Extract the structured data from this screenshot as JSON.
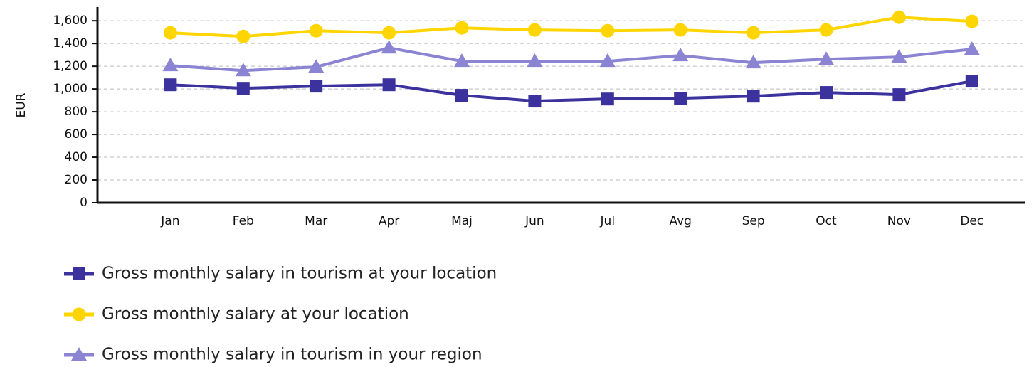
{
  "chart_data": {
    "type": "line",
    "y_label": "EUR",
    "categories": [
      "Jan",
      "Feb",
      "Mar",
      "Apr",
      "Maj",
      "Jun",
      "Jul",
      "Avg",
      "Sep",
      "Oct",
      "Nov",
      "Dec"
    ],
    "series": [
      {
        "name": "Gross monthly salary in tourism at your location",
        "color": "#3b329e",
        "marker": "square",
        "values": [
          1037,
          1006,
          1025,
          1037,
          944,
          894,
          912,
          919,
          937,
          969,
          950,
          1069
        ]
      },
      {
        "name": "Gross monthly salary at your location",
        "color": "#ffd500",
        "marker": "circle",
        "values": [
          1494,
          1462,
          1512,
          1494,
          1537,
          1519,
          1512,
          1519,
          1494,
          1519,
          1631,
          1594
        ]
      },
      {
        "name": "Gross monthly salary in tourism in your region",
        "color": "#8a84d2",
        "marker": "triangle",
        "values": [
          1206,
          1162,
          1194,
          1362,
          1244,
          1244,
          1244,
          1294,
          1231,
          1262,
          1281,
          1350
        ]
      }
    ],
    "ylim": [
      0,
      1720
    ],
    "yticks": [
      0,
      200,
      400,
      600,
      800,
      {
        "value": 1000,
        "label": "1,000"
      },
      {
        "value": 1200,
        "label": "1,200"
      },
      {
        "value": 1400,
        "label": "1,400"
      },
      {
        "value": 1600,
        "label": "1,600"
      }
    ],
    "grid": true,
    "legend": "bottom-left"
  }
}
